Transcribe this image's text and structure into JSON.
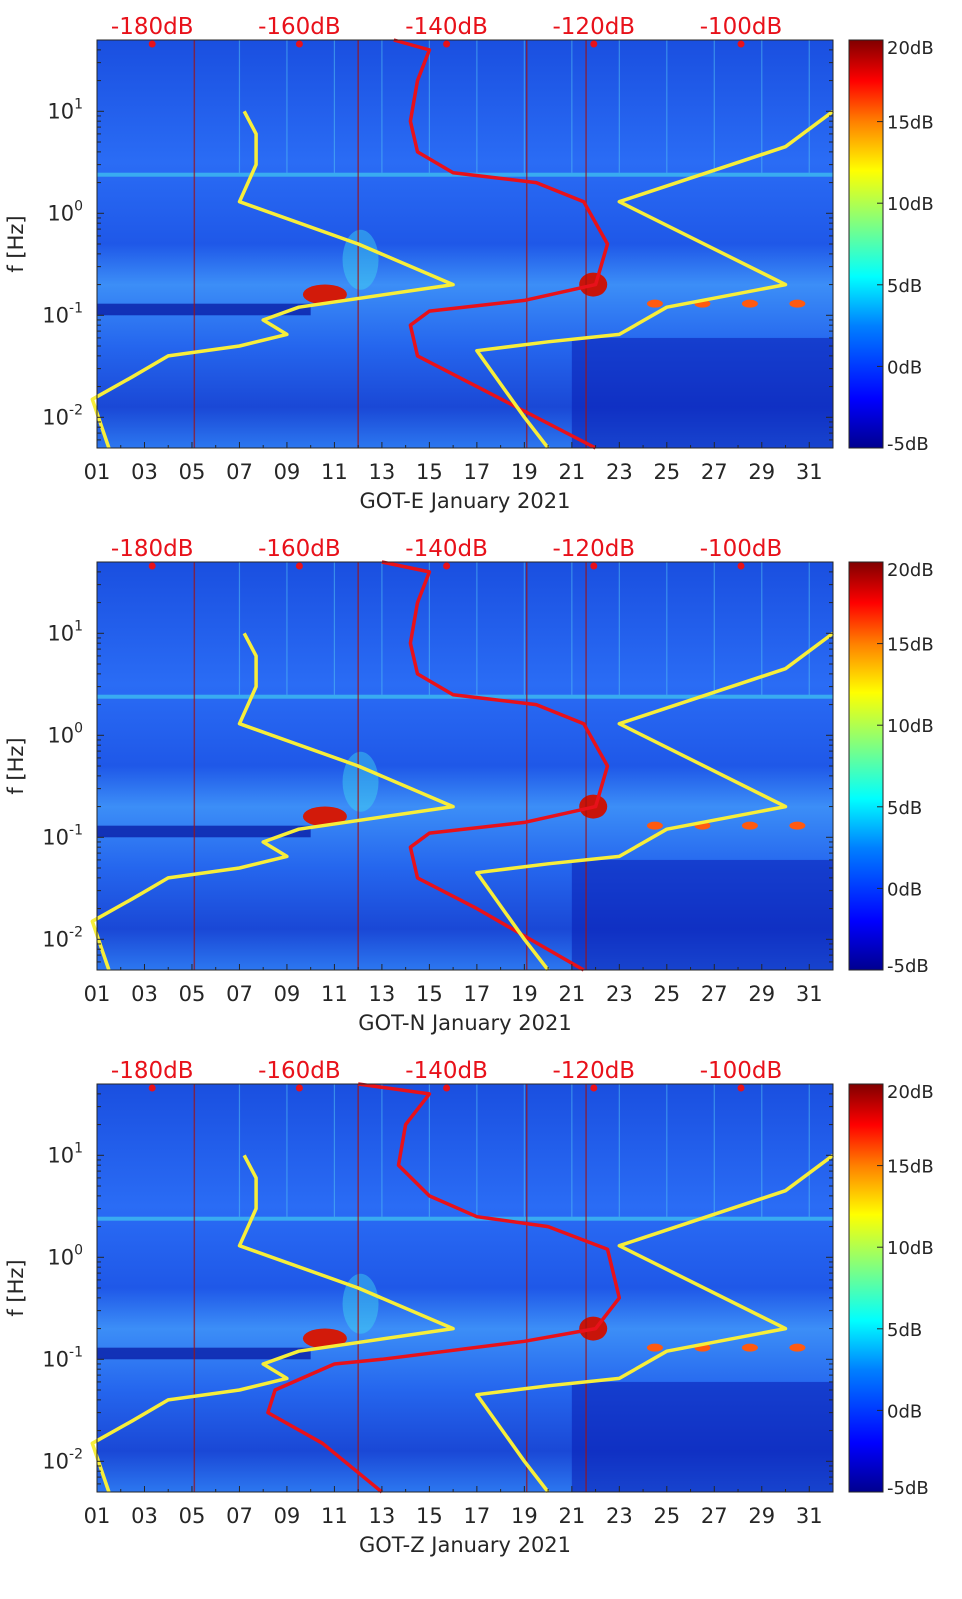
{
  "colorbar_ticks": [
    "20dB",
    "15dB",
    "10dB",
    "5dB",
    "0dB",
    "-5dB"
  ],
  "power_ticks": [
    "-180dB",
    "-160dB",
    "-140dB",
    "-120dB",
    "-100dB"
  ],
  "day_ticks": [
    "01",
    "03",
    "05",
    "07",
    "09",
    "11",
    "13",
    "15",
    "17",
    "19",
    "21",
    "23",
    "25",
    "27",
    "29",
    "31"
  ],
  "freq_ticks": [
    "10^1",
    "10^0",
    "10^-1",
    "10^-2"
  ],
  "ylabel": "f [Hz]",
  "colors": {
    "power_curve": "#e8111a",
    "noise_model": "#f7ee3a",
    "power_label": "#e8111a",
    "colormap": [
      "#00008f",
      "#0000ff",
      "#0080ff",
      "#00ffff",
      "#80ff80",
      "#ffff00",
      "#ff8000",
      "#ff0000",
      "#800000"
    ]
  },
  "chart_data": [
    {
      "type": "heatmap",
      "title": "GOT-E January 2021",
      "xlabel": "GOT-E January 2021",
      "ylabel": "f [Hz]",
      "x_range_days": [
        1,
        32
      ],
      "y_range_hz": [
        0.005,
        50
      ],
      "y_scale": "log",
      "color_range_db": [
        -5,
        20
      ],
      "top_axis_power_db": [
        -180,
        -160,
        -140,
        -120,
        -100
      ],
      "grid": false,
      "series": [
        {
          "name": "",
          "kind": "line",
          "color": "red",
          "points_day_hz": [
            [
              22,
              0.005
            ],
            [
              17,
              0.02
            ],
            [
              14.5,
              0.04
            ],
            [
              14.2,
              0.08
            ],
            [
              15,
              0.11
            ],
            [
              19,
              0.14
            ],
            [
              22,
              0.2
            ],
            [
              22.5,
              0.5
            ],
            [
              21.5,
              1.3
            ],
            [
              19.5,
              2
            ],
            [
              16,
              2.5
            ],
            [
              14.5,
              4
            ],
            [
              14.2,
              8
            ],
            [
              14.5,
              20
            ],
            [
              15,
              40
            ],
            [
              13.5,
              50
            ]
          ]
        },
        {
          "name": "",
          "kind": "line",
          "color": "yellow",
          "points_day_hz": [
            [
              1.5,
              0.005
            ],
            [
              0.8,
              0.015
            ],
            [
              2.5,
              0.025
            ],
            [
              4,
              0.04
            ],
            [
              7,
              0.05
            ],
            [
              9,
              0.065
            ],
            [
              8,
              0.09
            ],
            [
              9.5,
              0.12
            ],
            [
              16,
              0.2
            ],
            [
              12,
              0.5
            ],
            [
              7,
              1.3
            ],
            [
              7.7,
              3
            ],
            [
              7.7,
              6
            ],
            [
              7.2,
              10
            ]
          ]
        },
        {
          "name": "",
          "kind": "line",
          "color": "yellow",
          "points_day_hz": [
            [
              20,
              0.005
            ],
            [
              19,
              0.01
            ],
            [
              17,
              0.045
            ],
            [
              20,
              0.055
            ],
            [
              23,
              0.065
            ],
            [
              25,
              0.12
            ],
            [
              30,
              0.2
            ],
            [
              23,
              1.3
            ],
            [
              30,
              4.5
            ],
            [
              32,
              10
            ]
          ]
        }
      ]
    },
    {
      "type": "heatmap",
      "title": "GOT-N January 2021",
      "xlabel": "GOT-N January 2021",
      "ylabel": "f [Hz]",
      "x_range_days": [
        1,
        32
      ],
      "y_range_hz": [
        0.005,
        50
      ],
      "y_scale": "log",
      "color_range_db": [
        -5,
        20
      ],
      "top_axis_power_db": [
        -180,
        -160,
        -140,
        -120,
        -100
      ],
      "grid": false,
      "series": [
        {
          "name": "",
          "kind": "line",
          "color": "red",
          "points_day_hz": [
            [
              21.5,
              0.005
            ],
            [
              17,
              0.02
            ],
            [
              14.5,
              0.04
            ],
            [
              14.2,
              0.08
            ],
            [
              15,
              0.11
            ],
            [
              19,
              0.14
            ],
            [
              22,
              0.2
            ],
            [
              22.5,
              0.5
            ],
            [
              21.5,
              1.3
            ],
            [
              19.5,
              2
            ],
            [
              16,
              2.5
            ],
            [
              14.5,
              4
            ],
            [
              14.2,
              8
            ],
            [
              14.5,
              20
            ],
            [
              15,
              40
            ],
            [
              13,
              50
            ]
          ]
        },
        {
          "name": "",
          "kind": "line",
          "color": "yellow",
          "points_day_hz": [
            [
              1.5,
              0.005
            ],
            [
              0.8,
              0.015
            ],
            [
              2.5,
              0.025
            ],
            [
              4,
              0.04
            ],
            [
              7,
              0.05
            ],
            [
              9,
              0.065
            ],
            [
              8,
              0.09
            ],
            [
              9.5,
              0.12
            ],
            [
              16,
              0.2
            ],
            [
              12,
              0.5
            ],
            [
              7,
              1.3
            ],
            [
              7.7,
              3
            ],
            [
              7.7,
              6
            ],
            [
              7.2,
              10
            ]
          ]
        },
        {
          "name": "",
          "kind": "line",
          "color": "yellow",
          "points_day_hz": [
            [
              20,
              0.005
            ],
            [
              19,
              0.01
            ],
            [
              17,
              0.045
            ],
            [
              20,
              0.055
            ],
            [
              23,
              0.065
            ],
            [
              25,
              0.12
            ],
            [
              30,
              0.2
            ],
            [
              23,
              1.3
            ],
            [
              30,
              4.5
            ],
            [
              32,
              10
            ]
          ]
        }
      ]
    },
    {
      "type": "heatmap",
      "title": "GOT-Z January 2021",
      "xlabel": "GOT-Z January 2021",
      "ylabel": "f [Hz]",
      "x_range_days": [
        1,
        32
      ],
      "y_range_hz": [
        0.005,
        50
      ],
      "y_scale": "log",
      "color_range_db": [
        -5,
        20
      ],
      "top_axis_power_db": [
        -180,
        -160,
        -140,
        -120,
        -100
      ],
      "grid": false,
      "series": [
        {
          "name": "",
          "kind": "line",
          "color": "red",
          "points_day_hz": [
            [
              13,
              0.005
            ],
            [
              10.5,
              0.015
            ],
            [
              8.2,
              0.03
            ],
            [
              8.5,
              0.05
            ],
            [
              11,
              0.09
            ],
            [
              13,
              0.1
            ],
            [
              19,
              0.15
            ],
            [
              22,
              0.2
            ],
            [
              23,
              0.4
            ],
            [
              22.5,
              1.2
            ],
            [
              20,
              2
            ],
            [
              17,
              2.5
            ],
            [
              15,
              4
            ],
            [
              13.7,
              8
            ],
            [
              14,
              20
            ],
            [
              15,
              40
            ],
            [
              12,
              50
            ]
          ]
        },
        {
          "name": "",
          "kind": "line",
          "color": "yellow",
          "points_day_hz": [
            [
              1.5,
              0.005
            ],
            [
              0.8,
              0.015
            ],
            [
              2.5,
              0.025
            ],
            [
              4,
              0.04
            ],
            [
              7,
              0.05
            ],
            [
              9,
              0.065
            ],
            [
              8,
              0.09
            ],
            [
              9.5,
              0.12
            ],
            [
              16,
              0.2
            ],
            [
              12,
              0.5
            ],
            [
              7,
              1.3
            ],
            [
              7.7,
              3
            ],
            [
              7.7,
              6
            ],
            [
              7.2,
              10
            ]
          ]
        },
        {
          "name": "",
          "kind": "line",
          "color": "yellow",
          "points_day_hz": [
            [
              20,
              0.005
            ],
            [
              19,
              0.01
            ],
            [
              17,
              0.045
            ],
            [
              20,
              0.055
            ],
            [
              23,
              0.065
            ],
            [
              25,
              0.12
            ],
            [
              30,
              0.2
            ],
            [
              23,
              1.3
            ],
            [
              30,
              4.5
            ],
            [
              32,
              10
            ]
          ]
        }
      ]
    }
  ]
}
